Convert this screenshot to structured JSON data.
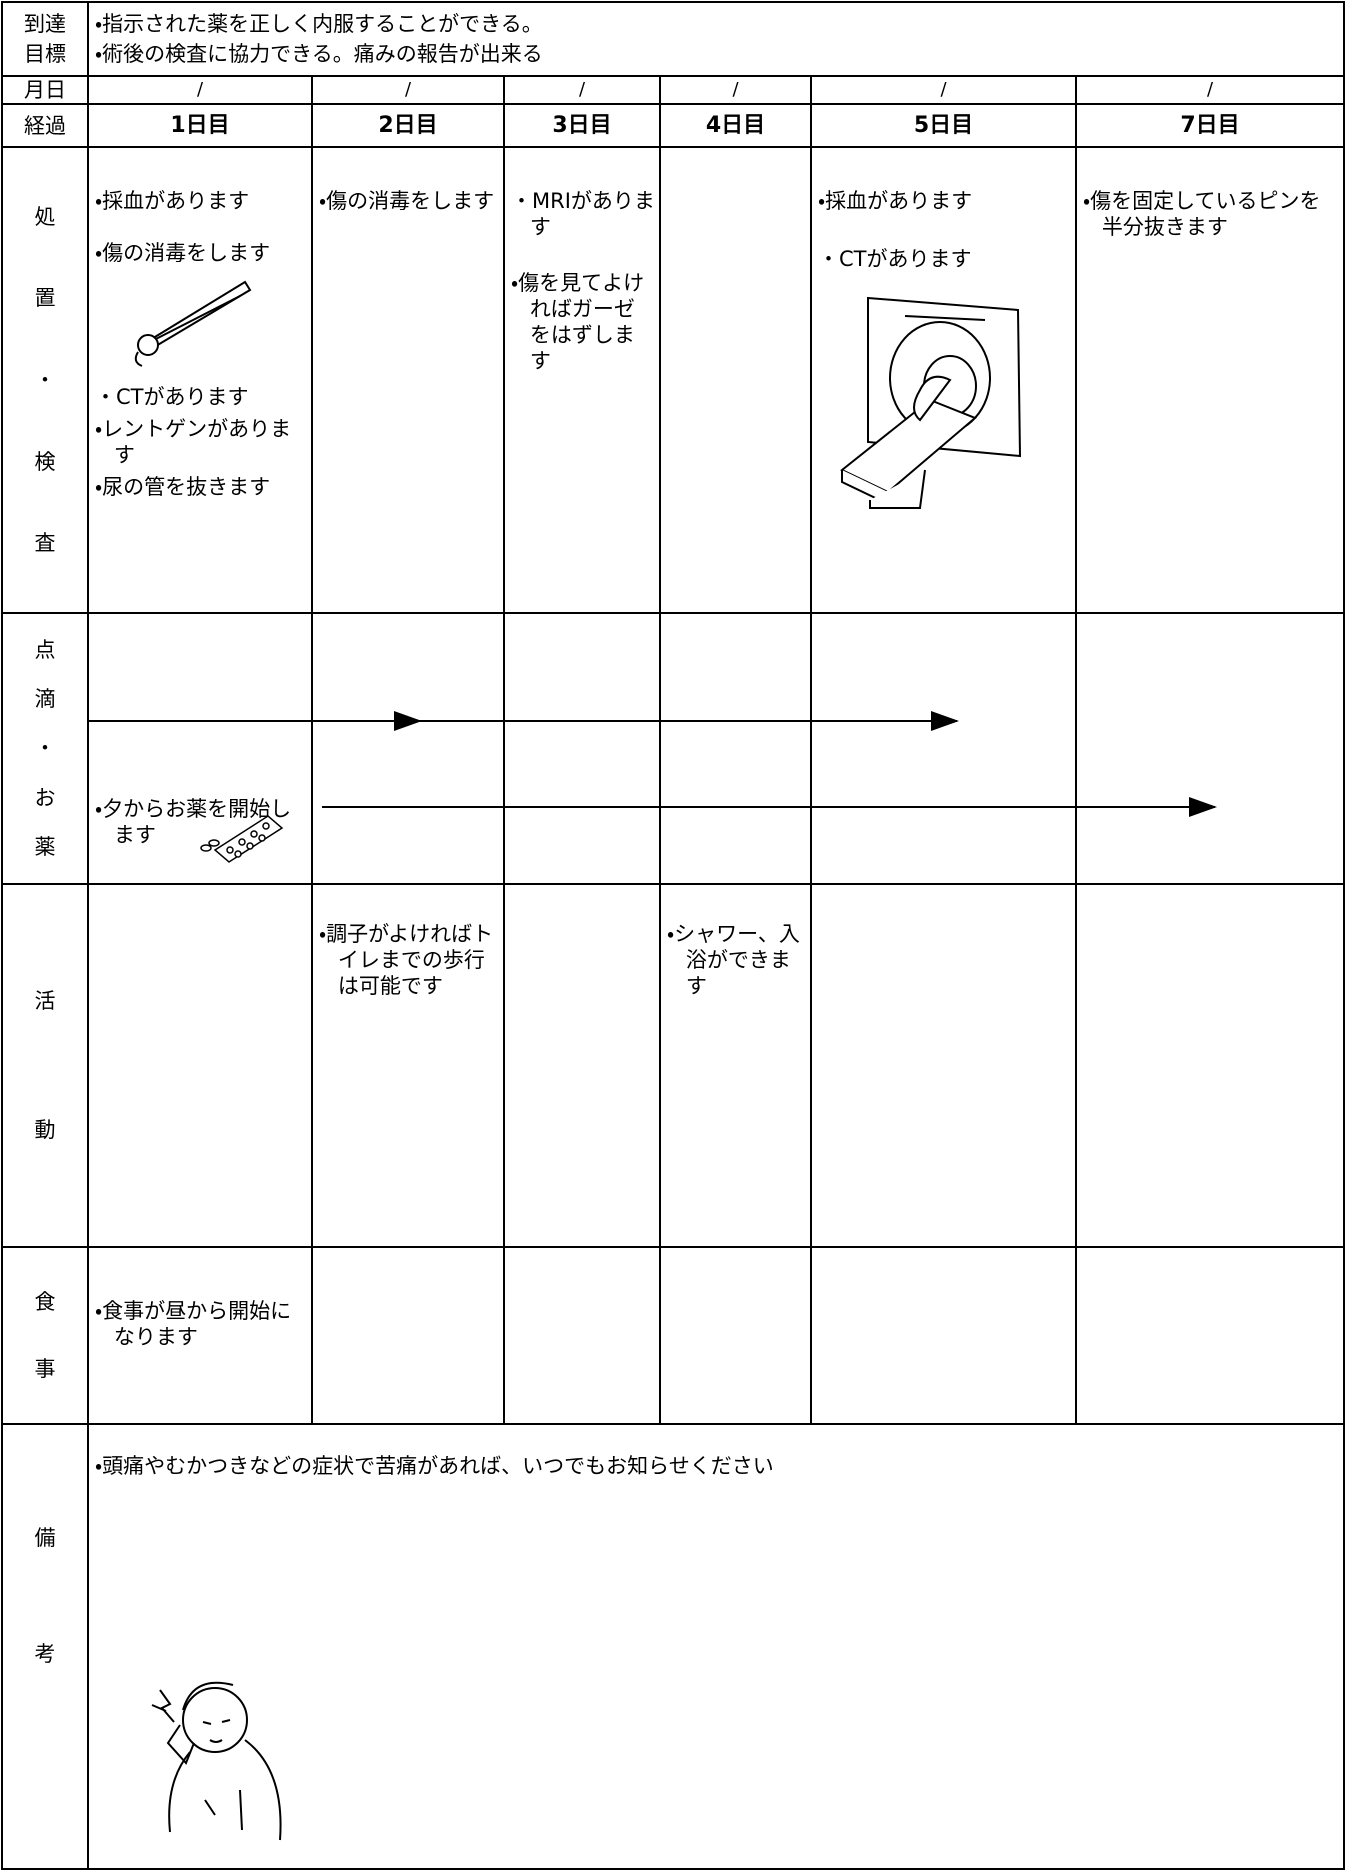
{
  "goals": {
    "label": [
      "到達",
      "目標"
    ],
    "items": [
      "・指示された薬を正しく内服することができる。",
      "・術後の検査に協力できる。痛みの報告が出来る"
    ]
  },
  "date_row": {
    "label": "月日",
    "dates": [
      "/",
      "/",
      "/",
      "/",
      "/",
      "/"
    ]
  },
  "progress": {
    "label": "経過",
    "days": [
      "1日目",
      "2日目",
      "3日目",
      "4日目",
      "5日目",
      "7日目"
    ]
  },
  "rows": [
    {
      "label": [
        "処",
        "置",
        "・",
        "検",
        "査"
      ],
      "cells": [
        [
          "・採血があります",
          "・傷の消毒をします",
          "・CTがあります",
          "・レントゲンがあります",
          "・尿の管を抜きます"
        ],
        [
          "・傷の消毒をします"
        ],
        [
          "・MRIがあります",
          "・傷を見てよければガーゼをはずします"
        ],
        [],
        [
          "・採血があります",
          "・CTがあります"
        ],
        [
          "・傷を固定しているピンを半分抜きます"
        ]
      ]
    },
    {
      "label": [
        "点",
        "滴",
        "・",
        "お",
        "薬"
      ],
      "cells": [
        [
          "・夕からお薬を開始します"
        ],
        [],
        [],
        [],
        [],
        []
      ]
    },
    {
      "label": [
        "活",
        "動"
      ],
      "cells": [
        [],
        [
          "・調子がよければトイレまでの歩行は可能です"
        ],
        [],
        [
          "・シャワー、入浴ができます"
        ],
        [],
        []
      ]
    },
    {
      "label": [
        "食",
        "事"
      ],
      "cells": [
        [
          "・食事が昼から開始になります"
        ],
        [],
        [],
        [],
        [],
        []
      ]
    }
  ],
  "remarks": {
    "label": [
      "備",
      "考"
    ],
    "text": "・頭痛やむかつきなどの症状で苦痛があれば、いつでもお知らせください"
  }
}
